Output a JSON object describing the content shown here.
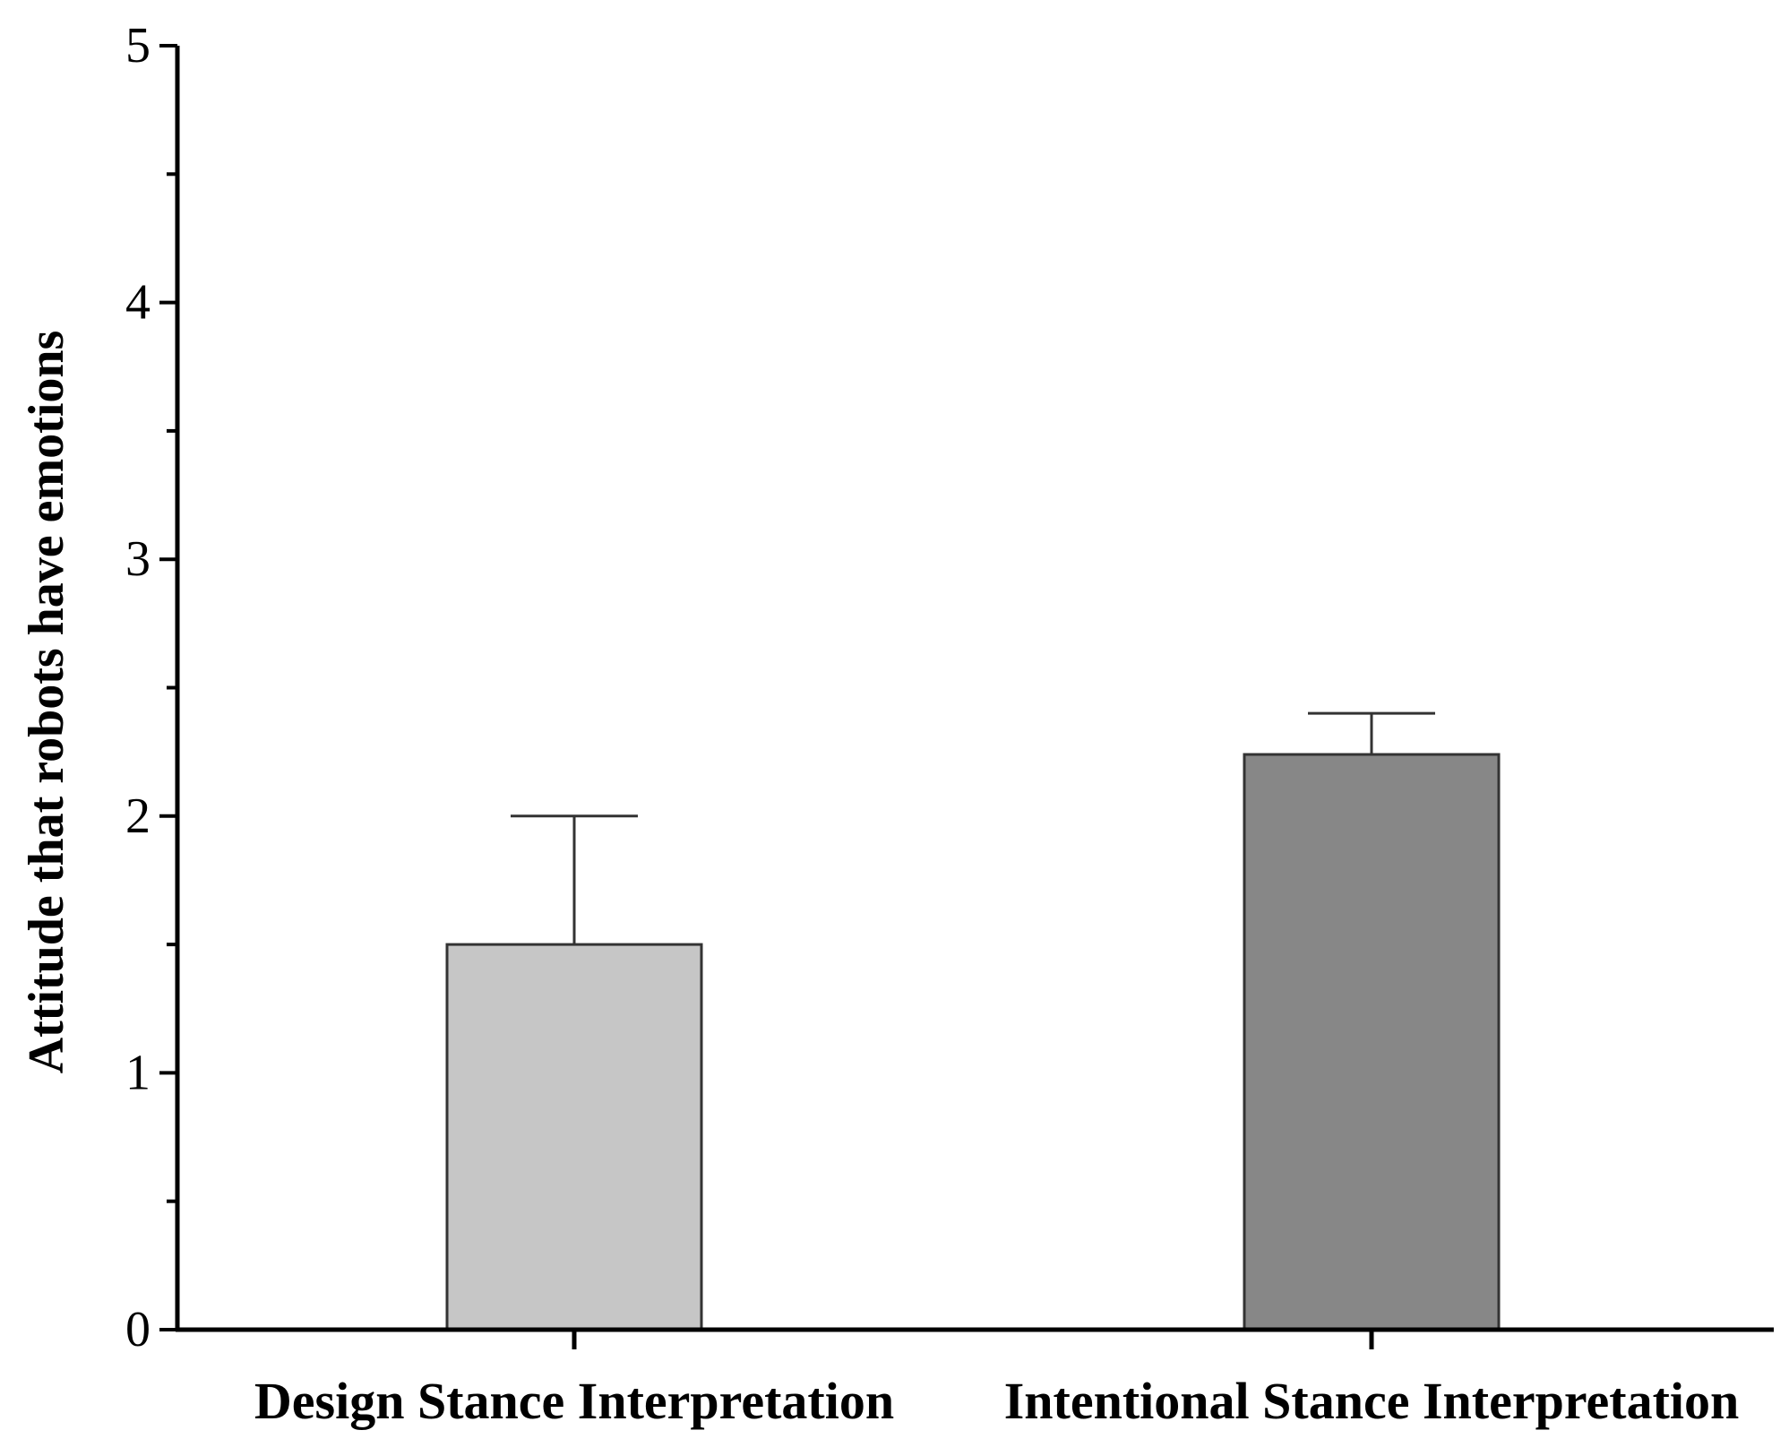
{
  "chart_data": {
    "type": "bar",
    "title": "",
    "xlabel": "",
    "ylabel": "Attitude that robots have emotions",
    "ylim": [
      0,
      5
    ],
    "yticks": [
      0,
      1,
      2,
      3,
      4,
      5
    ],
    "yminor_step": 0.5,
    "grid": false,
    "legend": "none",
    "categories": [
      "Design Stance Interpretation",
      "Intentional Stance Interpretation"
    ],
    "values": [
      1.5,
      2.24
    ],
    "error_upper": [
      0.5,
      0.16
    ],
    "colors": [
      "#c6c6c6",
      "#878787"
    ]
  }
}
